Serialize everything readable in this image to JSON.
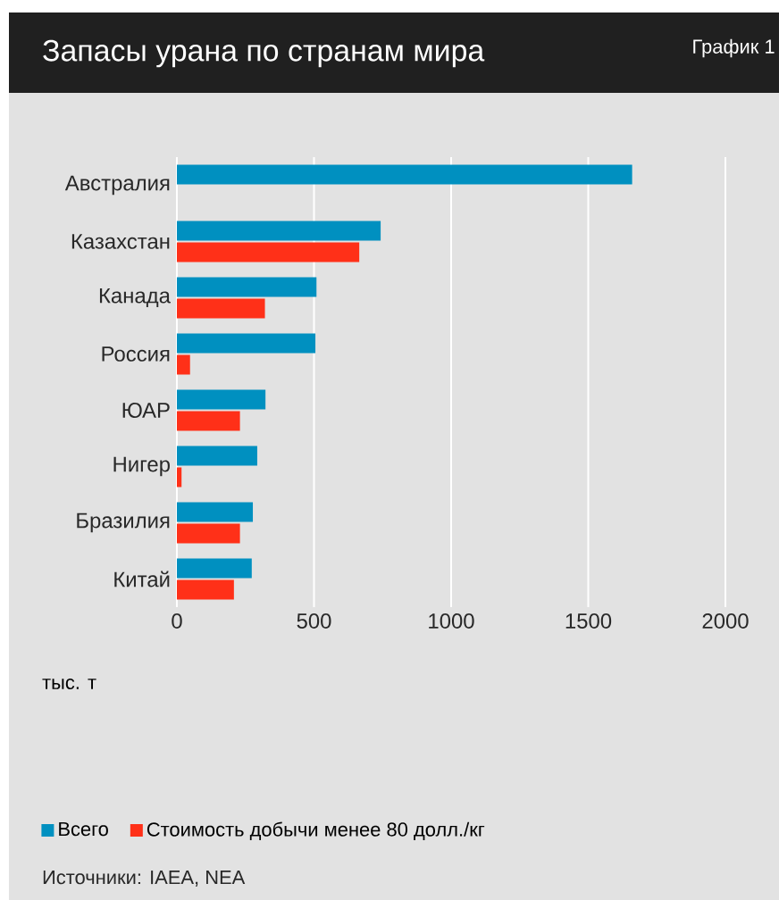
{
  "chart_data": {
    "type": "bar",
    "orientation": "horizontal",
    "title": "Запасы урана по странам мира",
    "xlabel": "тыс. т",
    "categories": [
      "Австралия",
      "Казахстан",
      "Канада",
      "Россия",
      "ЮАР",
      "Нигер",
      "Бразилия",
      "Китай"
    ],
    "series": [
      {
        "name": "Всего",
        "color": "#0090c0",
        "values": [
          1660,
          743,
          509,
          505,
          323,
          293,
          277,
          273
        ]
      },
      {
        "name": "Стоимость добычи менее 80 долл./кг",
        "color": "#ff3018",
        "values": [
          null,
          665,
          321,
          48,
          230,
          17,
          230,
          208
        ]
      }
    ],
    "xlim": [
      0,
      2000
    ],
    "xticks": [
      0,
      500,
      1000,
      1500,
      2000
    ],
    "grid": "x",
    "legend": "bottom",
    "annotations": [
      "График 1",
      "Источники: IAEA, NEA"
    ]
  }
}
